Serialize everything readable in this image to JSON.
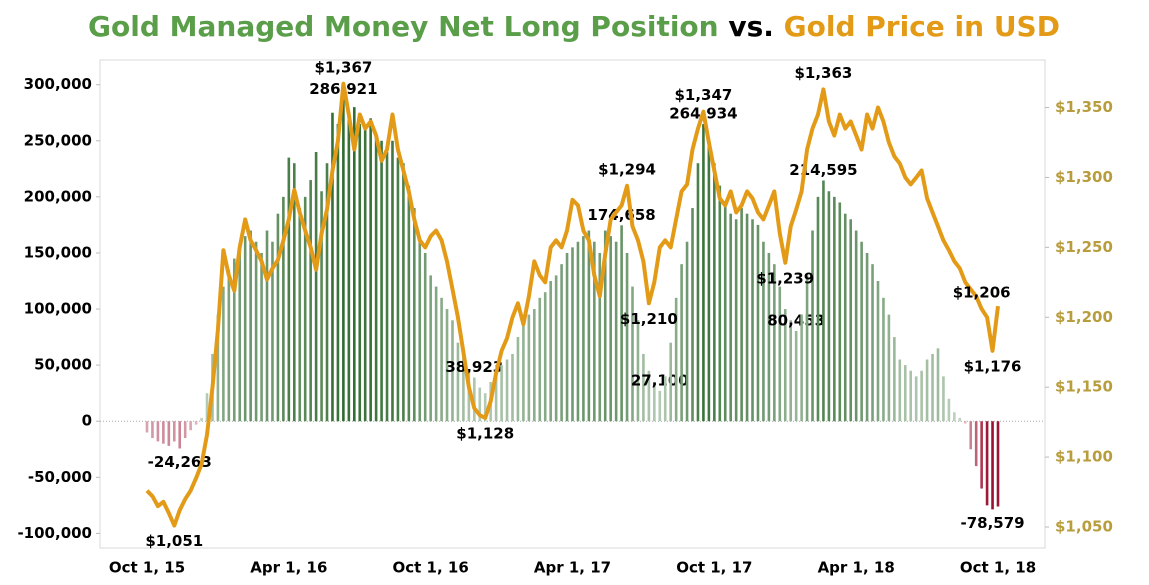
{
  "chart_data": {
    "type": "bar_line",
    "title_parts": [
      {
        "text": "Gold Managed Money Net Long Position",
        "color": "#5a9e4a"
      },
      {
        "text": "vs.",
        "color": "#000000"
      },
      {
        "text": "Gold Price in USD",
        "color": "#e39b17"
      }
    ],
    "categories": [
      "Oct 1, 15",
      null,
      null,
      null,
      null,
      null,
      null,
      null,
      null,
      null,
      null,
      null,
      null,
      null,
      null,
      null,
      null,
      null,
      null,
      null,
      null,
      null,
      null,
      null,
      null,
      null,
      "Apr 1, 16",
      null,
      null,
      null,
      null,
      null,
      null,
      null,
      null,
      null,
      null,
      null,
      null,
      null,
      null,
      null,
      null,
      null,
      null,
      null,
      null,
      null,
      null,
      null,
      null,
      null,
      "Oct 1, 16",
      null,
      null,
      null,
      null,
      null,
      null,
      null,
      null,
      null,
      null,
      null,
      null,
      null,
      null,
      null,
      null,
      null,
      null,
      null,
      null,
      null,
      null,
      null,
      null,
      null,
      "Apr 1, 17",
      null,
      null,
      null,
      null,
      null,
      null,
      null,
      null,
      null,
      null,
      null,
      null,
      null,
      null,
      null,
      null,
      null,
      null,
      null,
      null,
      null,
      null,
      null,
      null,
      null,
      "Oct 1, 17",
      null,
      null,
      null,
      null,
      null,
      null,
      null,
      null,
      null,
      null,
      null,
      null,
      null,
      null,
      null,
      null,
      null,
      null,
      null,
      null,
      null,
      null,
      null,
      null,
      null,
      "Apr 1, 18",
      null,
      null,
      null,
      null,
      null,
      null,
      null,
      null,
      null,
      null,
      null,
      null,
      null,
      null,
      null,
      null,
      null,
      null,
      null,
      null,
      null,
      null,
      null,
      null,
      null,
      "Oct 1, 18"
    ],
    "series": [
      {
        "type": "bar",
        "color": "#2e6b2e",
        "negative_color": "#9b1030",
        "values": [
          -10000,
          -15000,
          -18000,
          -20000,
          -22000,
          -18000,
          -24263,
          -15000,
          -8000,
          -3000,
          3000,
          25000,
          60000,
          95000,
          120000,
          135000,
          145000,
          150000,
          165000,
          170000,
          160000,
          150000,
          170000,
          160000,
          185000,
          200000,
          235000,
          230000,
          190000,
          200000,
          215000,
          240000,
          205000,
          230000,
          275000,
          265000,
          286921,
          270000,
          280000,
          265000,
          260000,
          270000,
          255000,
          250000,
          240000,
          250000,
          235000,
          230000,
          210000,
          190000,
          160000,
          150000,
          130000,
          120000,
          110000,
          100000,
          90000,
          70000,
          60000,
          45000,
          38923,
          30000,
          25000,
          35000,
          45000,
          50000,
          55000,
          60000,
          75000,
          90000,
          95000,
          100000,
          110000,
          115000,
          125000,
          130000,
          140000,
          150000,
          155000,
          160000,
          165000,
          170000,
          160000,
          150000,
          170000,
          165000,
          160000,
          174658,
          150000,
          120000,
          90000,
          60000,
          45000,
          35000,
          27100,
          40000,
          70000,
          110000,
          140000,
          160000,
          190000,
          230000,
          264934,
          250000,
          230000,
          210000,
          195000,
          185000,
          180000,
          190000,
          185000,
          180000,
          175000,
          160000,
          150000,
          140000,
          120000,
          100000,
          90000,
          80453,
          95000,
          130000,
          170000,
          200000,
          214595,
          205000,
          200000,
          195000,
          185000,
          180000,
          170000,
          160000,
          150000,
          140000,
          125000,
          110000,
          95000,
          75000,
          55000,
          50000,
          45000,
          40000,
          45000,
          55000,
          60000,
          65000,
          40000,
          20000,
          8000,
          3000,
          -2000,
          -25000,
          -40000,
          -60000,
          -75000,
          -78579,
          -76000
        ],
        "value_labels": [
          null,
          null,
          null,
          null,
          null,
          null,
          "-24,263",
          null,
          null,
          null,
          null,
          null,
          null,
          null,
          null,
          null,
          null,
          null,
          null,
          null,
          null,
          null,
          null,
          null,
          null,
          null,
          null,
          null,
          null,
          null,
          null,
          null,
          null,
          null,
          null,
          null,
          "286,921",
          null,
          null,
          null,
          null,
          null,
          null,
          null,
          null,
          null,
          null,
          null,
          null,
          null,
          null,
          null,
          null,
          null,
          null,
          null,
          null,
          null,
          null,
          null,
          "38,923",
          null,
          null,
          null,
          null,
          null,
          null,
          null,
          null,
          null,
          null,
          null,
          null,
          null,
          null,
          null,
          null,
          null,
          null,
          null,
          null,
          null,
          null,
          null,
          null,
          null,
          null,
          "174,658",
          null,
          null,
          null,
          null,
          null,
          null,
          "27,100",
          null,
          null,
          null,
          null,
          null,
          null,
          null,
          "264,934",
          null,
          null,
          null,
          null,
          null,
          null,
          null,
          null,
          null,
          null,
          null,
          null,
          null,
          null,
          null,
          null,
          "80,453",
          null,
          null,
          null,
          null,
          "214,595",
          null,
          null,
          null,
          null,
          null,
          null,
          null,
          null,
          null,
          null,
          null,
          null,
          null,
          null,
          null,
          null,
          null,
          null,
          null,
          null,
          null,
          null,
          null,
          null,
          null,
          null,
          null,
          null,
          null,
          null,
          "-78,579",
          null
        ]
      },
      {
        "type": "line",
        "axis": "y2",
        "color": "#e39b17",
        "values": [
          1076,
          1072,
          1065,
          1068,
          1060,
          1051,
          1062,
          1070,
          1076,
          1085,
          1095,
          1116,
          1150,
          1191,
          1248,
          1230,
          1219,
          1250,
          1270,
          1255,
          1248,
          1240,
          1227,
          1235,
          1241,
          1255,
          1270,
          1291,
          1275,
          1262,
          1250,
          1234,
          1260,
          1277,
          1305,
          1326,
          1367,
          1345,
          1320,
          1345,
          1335,
          1340,
          1330,
          1312,
          1320,
          1345,
          1320,
          1305,
          1290,
          1270,
          1255,
          1250,
          1258,
          1262,
          1255,
          1240,
          1220,
          1200,
          1175,
          1150,
          1135,
          1130,
          1128,
          1140,
          1160,
          1176,
          1185,
          1200,
          1210,
          1195,
          1215,
          1240,
          1230,
          1225,
          1250,
          1255,
          1250,
          1262,
          1284,
          1280,
          1262,
          1255,
          1230,
          1215,
          1245,
          1270,
          1275,
          1280,
          1294,
          1265,
          1255,
          1240,
          1210,
          1225,
          1250,
          1255,
          1250,
          1270,
          1290,
          1295,
          1320,
          1335,
          1347,
          1325,
          1305,
          1285,
          1280,
          1290,
          1275,
          1280,
          1290,
          1285,
          1275,
          1270,
          1280,
          1290,
          1260,
          1239,
          1265,
          1277,
          1290,
          1320,
          1335,
          1345,
          1363,
          1340,
          1330,
          1345,
          1335,
          1340,
          1330,
          1320,
          1345,
          1335,
          1350,
          1340,
          1325,
          1315,
          1310,
          1300,
          1295,
          1300,
          1305,
          1285,
          1275,
          1265,
          1255,
          1248,
          1240,
          1235,
          1225,
          1220,
          1215,
          1206,
          1200,
          1176,
          1208
        ],
        "value_labels": [
          null,
          null,
          null,
          null,
          null,
          "$1,051",
          null,
          null,
          null,
          null,
          null,
          null,
          null,
          null,
          null,
          null,
          null,
          null,
          null,
          null,
          null,
          null,
          null,
          null,
          null,
          null,
          null,
          null,
          null,
          null,
          null,
          null,
          null,
          null,
          null,
          null,
          "$1,367",
          null,
          null,
          null,
          null,
          null,
          null,
          null,
          null,
          null,
          null,
          null,
          null,
          null,
          null,
          null,
          null,
          null,
          null,
          null,
          null,
          null,
          null,
          null,
          null,
          null,
          "$1,128",
          null,
          null,
          null,
          null,
          null,
          null,
          null,
          null,
          null,
          null,
          null,
          null,
          null,
          null,
          null,
          null,
          null,
          null,
          null,
          null,
          null,
          null,
          null,
          null,
          null,
          "$1,294",
          null,
          null,
          null,
          "$1,210",
          null,
          null,
          null,
          null,
          null,
          null,
          null,
          null,
          null,
          "$1,347",
          null,
          null,
          null,
          null,
          null,
          null,
          null,
          null,
          null,
          null,
          null,
          null,
          null,
          null,
          "$1,239",
          null,
          null,
          null,
          null,
          null,
          null,
          "$1,363",
          null,
          null,
          null,
          null,
          null,
          null,
          null,
          null,
          null,
          null,
          null,
          null,
          null,
          null,
          null,
          null,
          null,
          null,
          null,
          null,
          null,
          null,
          null,
          null,
          null,
          null,
          null,
          null,
          "$1,206",
          null,
          "$1,176",
          null
        ]
      }
    ],
    "ylim": [
      -113000,
      322000
    ],
    "yticks": [
      {
        "value": -100000,
        "label": "-100,000"
      },
      {
        "value": -50000,
        "label": "-50,000"
      },
      0,
      {
        "value": 50000,
        "label": "50,000"
      },
      {
        "value": 100000,
        "label": "100,000"
      },
      {
        "value": 150000,
        "label": "150,000"
      },
      {
        "value": 200000,
        "label": "200,000"
      },
      {
        "value": 250000,
        "label": "250,000"
      },
      {
        "value": 300000,
        "label": "300,000"
      }
    ],
    "y2lim": [
      1035,
      1384
    ],
    "y2ticks": [
      {
        "value": 1050,
        "label": "$1,050"
      },
      {
        "value": 1100,
        "label": "$1,100"
      },
      {
        "value": 1150,
        "label": "$1,150"
      },
      {
        "value": 1200,
        "label": "$1,200"
      },
      {
        "value": 1250,
        "label": "$1,250"
      },
      {
        "value": 1300,
        "label": "$1,300"
      },
      {
        "value": 1350,
        "label": "$1,350"
      }
    ],
    "y2_tick_color": "#b89d3c",
    "grid": false
  }
}
